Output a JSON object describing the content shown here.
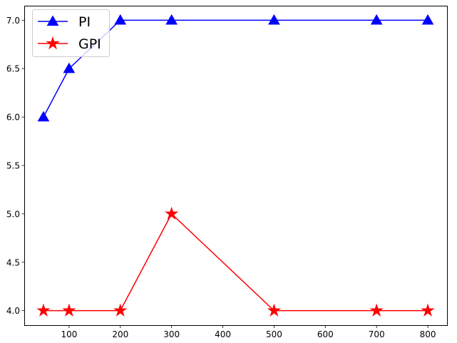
{
  "chart_data": {
    "type": "line",
    "x": [
      50,
      100,
      200,
      300,
      500,
      700,
      800
    ],
    "series": [
      {
        "name": "PI",
        "values": [
          6.0,
          6.5,
          7.0,
          7.0,
          7.0,
          7.0,
          7.0
        ],
        "color": "#0000ff",
        "marker": "triangle-up"
      },
      {
        "name": "GPI",
        "values": [
          4.0,
          4.0,
          4.0,
          5.0,
          4.0,
          4.0,
          4.0
        ],
        "color": "#ff0000",
        "marker": "star"
      }
    ],
    "xticks": [
      100,
      200,
      300,
      400,
      500,
      600,
      700,
      800
    ],
    "yticks": [
      4.0,
      4.5,
      5.0,
      5.5,
      6.0,
      6.5,
      7.0
    ],
    "xtick_labels": [
      "100",
      "200",
      "300",
      "400",
      "500",
      "600",
      "700",
      "800"
    ],
    "ytick_labels": [
      "4.0",
      "4.5",
      "5.0",
      "5.5",
      "6.0",
      "6.5",
      "7.0"
    ],
    "xlim": [
      12.5,
      837.5
    ],
    "ylim": [
      3.85,
      7.15
    ],
    "grid": false,
    "legend": "upper-left",
    "title": "",
    "xlabel": "",
    "ylabel": ""
  }
}
